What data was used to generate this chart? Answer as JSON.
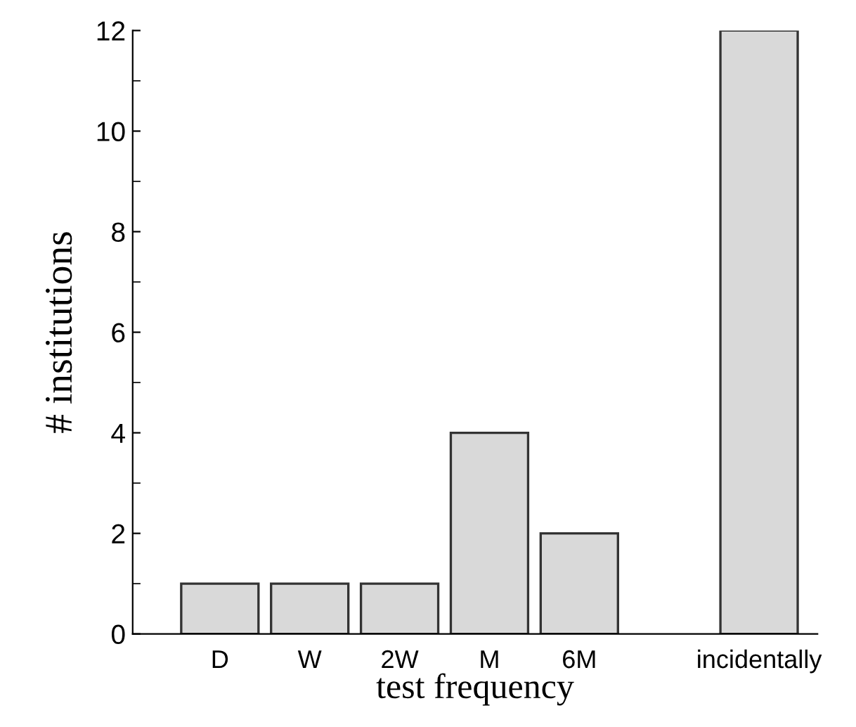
{
  "chart_data": {
    "type": "bar",
    "xlabel": "test frequency",
    "ylabel": "# institutions",
    "categories": [
      "D",
      "W",
      "2W",
      "M",
      "6M",
      null,
      "incidentally"
    ],
    "values": [
      1,
      1,
      1,
      4,
      2,
      null,
      12
    ],
    "color": "#d9d9d9",
    "ylim": [
      0,
      12
    ],
    "yticks": [
      0,
      2,
      4,
      6,
      8,
      10,
      12
    ],
    "grid": false
  }
}
